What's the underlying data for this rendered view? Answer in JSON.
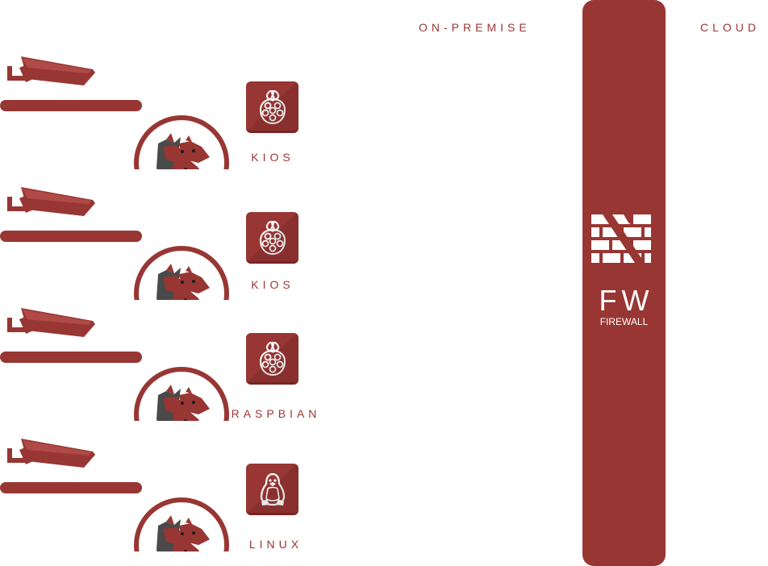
{
  "zones": {
    "on_premise": "ON-PREMISE",
    "cloud": "CLOUD"
  },
  "devices": [
    {
      "os_label": "KIOS",
      "os_icon": "raspberry-pi-icon"
    },
    {
      "os_label": "KIOS",
      "os_icon": "raspberry-pi-icon"
    },
    {
      "os_label": "RASPBIAN",
      "os_icon": "raspberry-pi-icon"
    },
    {
      "os_label": "LINUX",
      "os_icon": "linux-tux-icon"
    }
  ],
  "firewall": {
    "abbr": "FW",
    "name": "FIREWALL"
  },
  "colors": {
    "brand": "#983633",
    "shadow": "#7a2422",
    "wolf": "#4a4a4a",
    "background": "#ffffff"
  }
}
